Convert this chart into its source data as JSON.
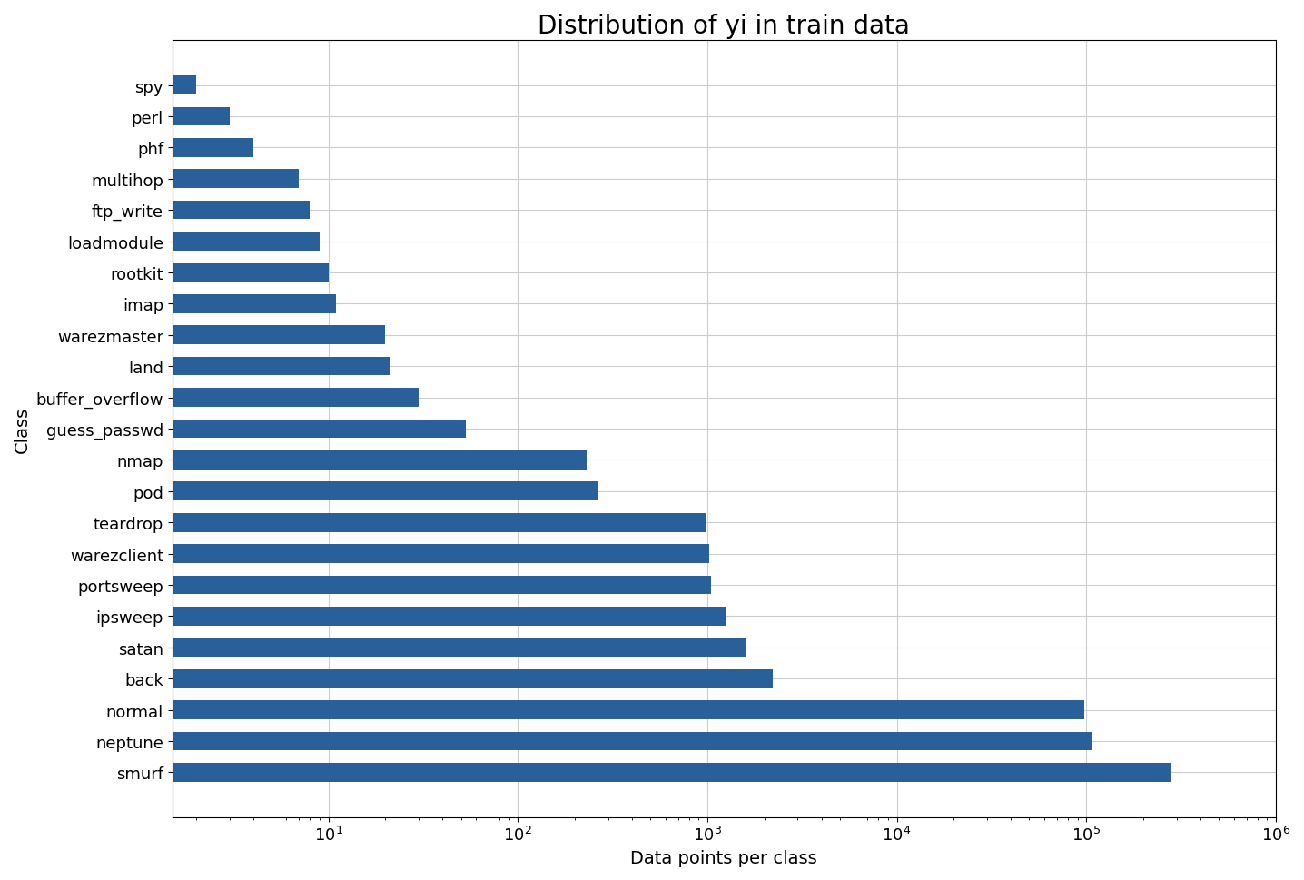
{
  "title": "Distribution of yi in train data",
  "xlabel": "Data points per class",
  "ylabel": "Class",
  "bar_color": "#2a6099",
  "categories": [
    "smurf",
    "neptune",
    "normal",
    "back",
    "satan",
    "ipsweep",
    "portsweep",
    "warezclient",
    "teardrop",
    "pod",
    "nmap",
    "guess_passwd",
    "buffer_overflow",
    "land",
    "warezmaster",
    "imap",
    "rootkit",
    "loadmodule",
    "ftp_write",
    "multihop",
    "phf",
    "perl",
    "spy"
  ],
  "values": [
    280790,
    107201,
    97278,
    2203,
    1589,
    1247,
    1040,
    1020,
    979,
    264,
    231,
    53,
    30,
    21,
    20,
    11,
    10,
    9,
    8,
    7,
    4,
    3,
    2
  ],
  "background_color": "#ffffff",
  "grid_color": "#cccccc",
  "title_fontsize": 20,
  "label_fontsize": 14,
  "tick_fontsize": 13
}
